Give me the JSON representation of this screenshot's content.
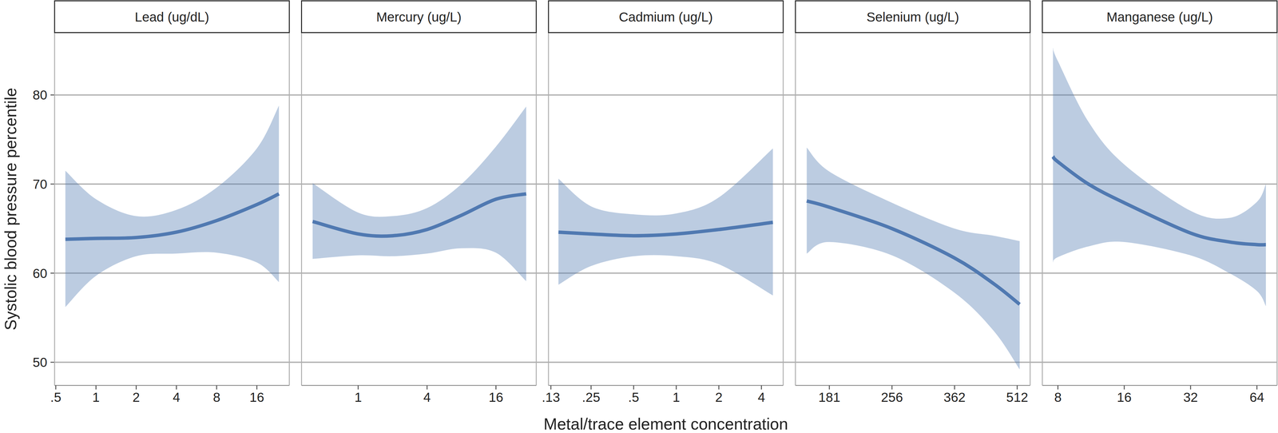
{
  "chart_data": {
    "type": "line",
    "y_label": "Systolic blood pressure percentile",
    "x_label": "Metal/trace element concentration",
    "ylim": [
      47.4,
      87.0
    ],
    "yticks": [
      50,
      60,
      70,
      80
    ],
    "grid": true,
    "log": "x",
    "color": "#5079b1",
    "panels": [
      {
        "title": "Lead (ug/dL)",
        "xlim": [
          0.49,
          28
        ],
        "xticks": [
          {
            "value": 0.5,
            "label": ".5"
          },
          1,
          2,
          4,
          8,
          16
        ],
        "x": [
          0.59,
          1,
          2,
          4,
          8,
          16,
          23.4
        ],
        "values": [
          63.8,
          63.9,
          64.0,
          64.6,
          65.9,
          67.7,
          68.9
        ],
        "lower": [
          56.2,
          59.7,
          61.9,
          62.2,
          62.3,
          61.2,
          59.0
        ],
        "upper": [
          71.5,
          68.3,
          66.4,
          67.1,
          69.6,
          74.0,
          78.8
        ]
      },
      {
        "title": "Mercury (ug/L)",
        "xlim": [
          0.32,
          36
        ],
        "xticks": [
          1,
          4,
          16
        ],
        "x": [
          0.4,
          1,
          2,
          4,
          8,
          16,
          29.4
        ],
        "values": [
          65.8,
          64.4,
          64.2,
          64.9,
          66.5,
          68.3,
          68.9
        ],
        "lower": [
          61.6,
          62.0,
          61.9,
          62.2,
          62.8,
          62.3,
          59.1
        ],
        "upper": [
          70.1,
          66.8,
          66.4,
          67.3,
          70.0,
          74.2,
          78.7
        ]
      },
      {
        "title": "Cadmium (ug/L)",
        "xlim": [
          0.125,
          5.7
        ],
        "xticks": [
          {
            "value": 0.13,
            "label": ".13"
          },
          {
            "value": 0.25,
            "label": ".25"
          },
          {
            "value": 0.5,
            "label": ".5"
          },
          1,
          2,
          4
        ],
        "x": [
          0.147,
          0.25,
          0.5,
          1,
          2,
          4.82
        ],
        "values": [
          64.6,
          64.4,
          64.2,
          64.4,
          64.9,
          65.7
        ],
        "lower": [
          58.7,
          60.8,
          61.9,
          61.9,
          61.0,
          57.5
        ],
        "upper": [
          70.6,
          67.5,
          66.6,
          66.7,
          68.5,
          74.0
        ]
      },
      {
        "title": "Selenium (ug/L)",
        "xlim": [
          150,
          550
        ],
        "xticks": [
          181,
          256,
          362,
          512
        ],
        "x": [
          159.7,
          181,
          256,
          362,
          450,
          519
        ],
        "values": [
          68.1,
          67.4,
          65.0,
          61.7,
          58.8,
          56.5
        ],
        "lower": [
          62.2,
          63.5,
          62.0,
          57.8,
          53.5,
          49.2
        ],
        "upper": [
          74.1,
          71.4,
          67.9,
          65.0,
          64.2,
          63.6
        ]
      },
      {
        "title": "Manganese (ug/L)",
        "xlim": [
          6.8,
          79
        ],
        "xticks": [
          8,
          16,
          32,
          64
        ],
        "x": [
          7.6,
          8,
          11,
          16,
          32,
          48,
          64,
          70.3
        ],
        "values": [
          73.1,
          72.5,
          70.0,
          67.9,
          64.5,
          63.5,
          63.2,
          63.2
        ],
        "lower": [
          61.2,
          61.8,
          63.0,
          63.5,
          62.0,
          60.0,
          58.0,
          56.3
        ],
        "upper": [
          85.3,
          83.8,
          77.0,
          72.2,
          67.0,
          66.2,
          68.0,
          70.0
        ]
      }
    ]
  }
}
